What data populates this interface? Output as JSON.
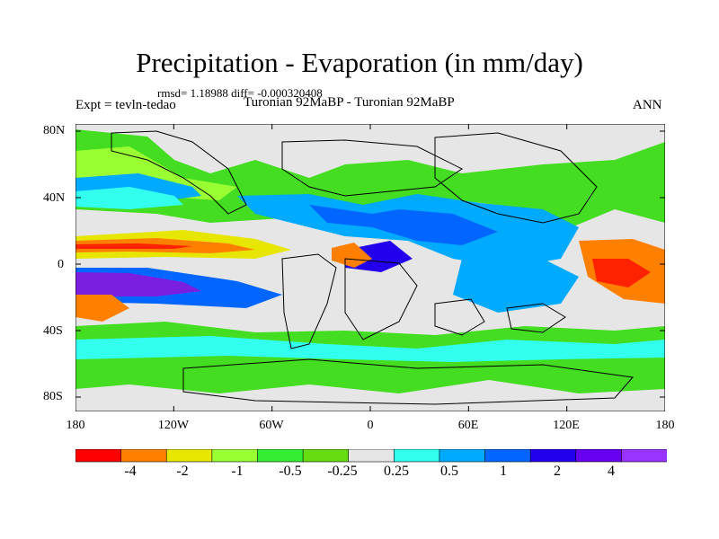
{
  "title": "Precipitation - Evaporation (in mm/day)",
  "stats": "rmsd= 1.18988 diff= -0.000320408",
  "expt": "Expt = tevln-tedao",
  "runs": "Turonian  92MaBP - Turonian  92MaBP",
  "season": "ANN",
  "lat_labels": [
    "80N",
    "40N",
    "0",
    "40S",
    "80S"
  ],
  "lon_labels": [
    "180",
    "120W",
    "60W",
    "0",
    "60E",
    "120E",
    "180"
  ],
  "colorbar": {
    "colors": [
      "#ff0000",
      "#ff8000",
      "#e6e600",
      "#99ff33",
      "#33ee33",
      "#66dd11",
      "#e6e6e6",
      "#33ffee",
      "#00aaff",
      "#0066ff",
      "#2200ee",
      "#6600ee",
      "#9933ff"
    ],
    "labels": [
      "-4",
      "-2",
      "-1",
      "-0.5",
      "-0.25",
      "0.25",
      "0.5",
      "1",
      "2",
      "4"
    ]
  },
  "map_colors": {
    "neutral": "#e6e6e6",
    "green": "#44dd22",
    "light_green": "#99ff33",
    "cyan": "#33ffee",
    "light_blue": "#00aaff",
    "blue": "#0066ff",
    "dark_blue": "#2200ee",
    "purple": "#7a1fe0",
    "yellow": "#e6e600",
    "orange": "#ff8000",
    "red": "#ff2200",
    "coast": "#000000"
  }
}
